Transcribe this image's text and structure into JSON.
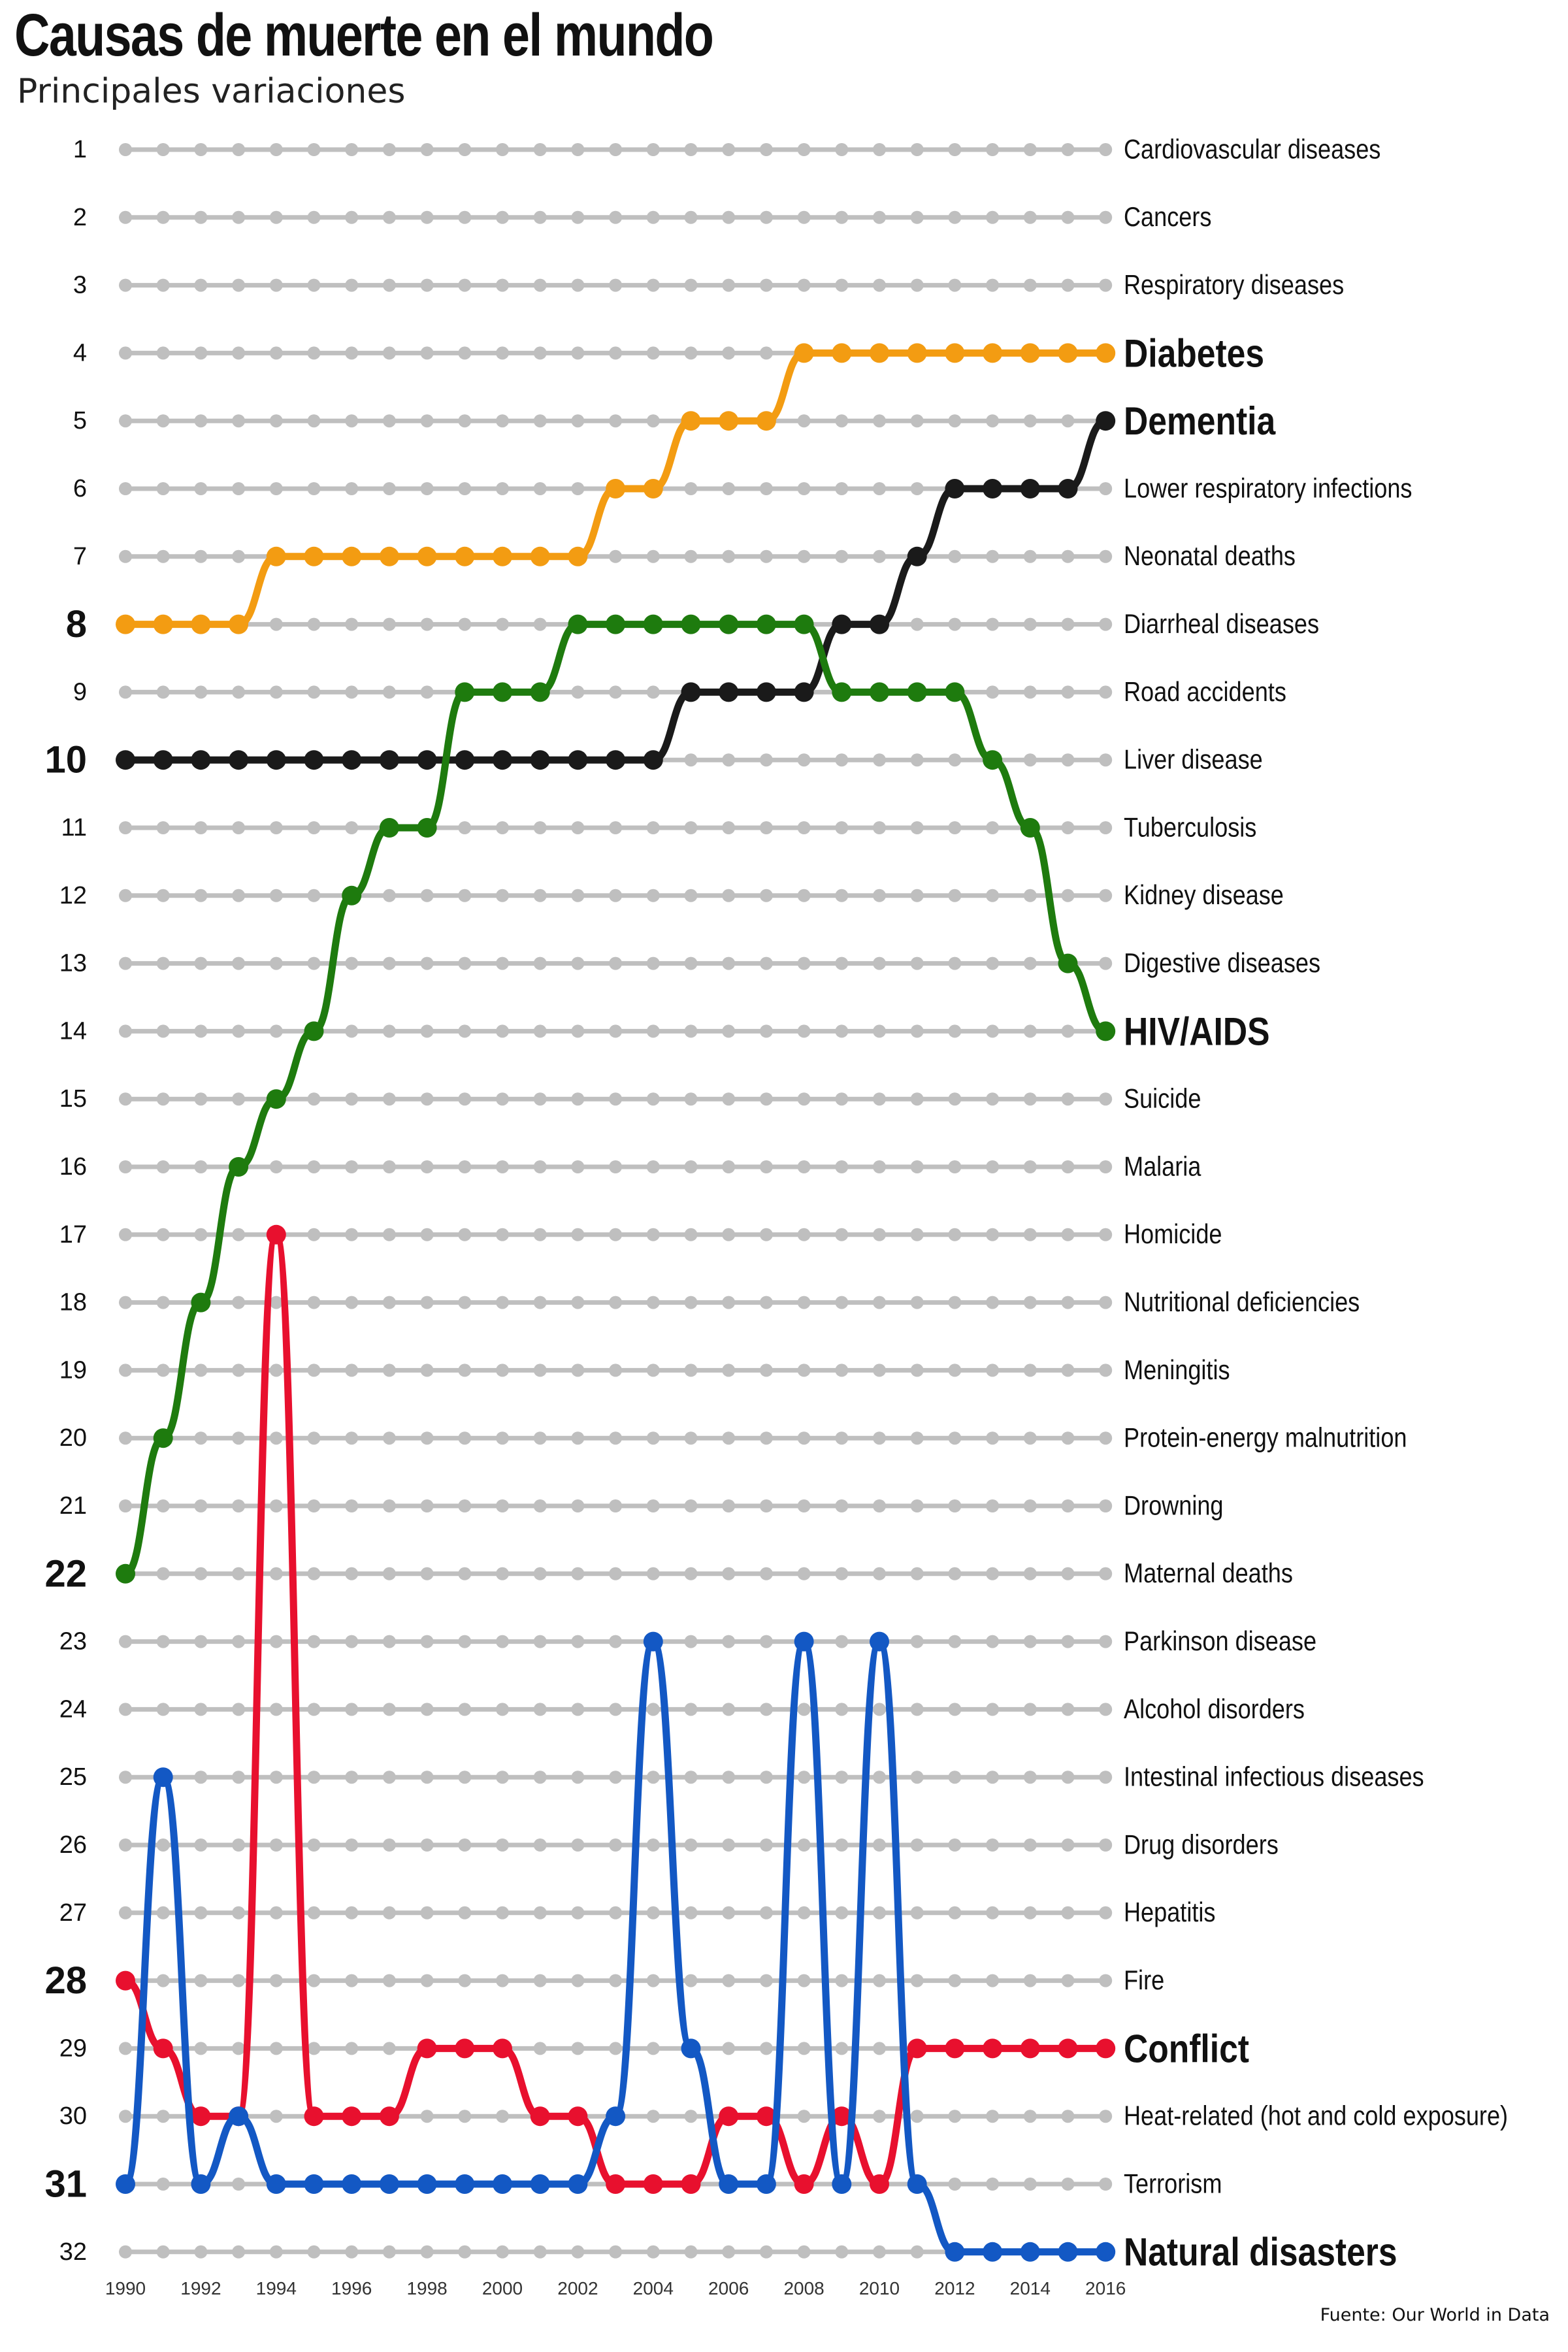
{
  "title": "Causas de muerte en el mundo",
  "subtitle": "Principales variaciones",
  "source": "Fuente: Our World in Data",
  "chart_data": {
    "type": "line",
    "chart_kind": "bump chart (rank over time)",
    "title": "Causas de muerte en el mundo",
    "subtitle": "Principales variaciones",
    "x": [
      1990,
      1991,
      1992,
      1993,
      1994,
      1995,
      1996,
      1997,
      1998,
      1999,
      2000,
      2001,
      2002,
      2003,
      2004,
      2005,
      2006,
      2007,
      2008,
      2009,
      2010,
      2011,
      2012,
      2013,
      2014,
      2015,
      2016
    ],
    "x_tick_labels": [
      "1990",
      "1992",
      "1994",
      "1996",
      "1998",
      "2000",
      "2002",
      "2004",
      "2006",
      "2008",
      "2010",
      "2012",
      "2014",
      "2016"
    ],
    "y_tick_labels": [
      "1",
      "2",
      "3",
      "4",
      "5",
      "6",
      "7",
      "8",
      "9",
      "10",
      "11",
      "12",
      "13",
      "14",
      "15",
      "16",
      "17",
      "18",
      "19",
      "20",
      "21",
      "22",
      "23",
      "24",
      "25",
      "26",
      "27",
      "28",
      "29",
      "30",
      "31",
      "32"
    ],
    "y_bold_ranks": [
      8,
      10,
      22,
      28,
      31
    ],
    "ylim": [
      1,
      32
    ],
    "y_reversed": true,
    "grid": false,
    "background_color": "#bfbfbf",
    "rank_labels_2016": [
      "Cardiovascular diseases",
      "Cancers",
      "Respiratory diseases",
      "Diabetes",
      "Dementia",
      "Lower respiratory infections",
      "Neonatal deaths",
      "Diarrheal diseases",
      "Road accidents",
      "Liver disease",
      "Tuberculosis",
      "Kidney disease",
      "Digestive diseases",
      "HIV/AIDS",
      "Suicide",
      "Malaria",
      "Homicide",
      "Nutritional deficiencies",
      "Meningitis",
      "Protein-energy malnutrition",
      "Drowning",
      "Maternal deaths",
      "Parkinson disease",
      "Alcohol disorders",
      "Intestinal infectious diseases",
      "Drug disorders",
      "Hepatitis",
      "Fire",
      "Conflict",
      "Heat-related (hot and cold exposure)",
      "Terrorism",
      "Natural disasters"
    ],
    "highlighted_labels": [
      "Diabetes",
      "Dementia",
      "HIV/AIDS",
      "Conflict",
      "Natural disasters"
    ],
    "series": [
      {
        "name": "Diabetes",
        "color": "#f39c12",
        "values": [
          8,
          8,
          8,
          8,
          7,
          7,
          7,
          7,
          7,
          7,
          7,
          7,
          7,
          6,
          6,
          5,
          5,
          5,
          4,
          4,
          4,
          4,
          4,
          4,
          4,
          4,
          4
        ]
      },
      {
        "name": "Dementia",
        "color": "#1a1a1a",
        "values": [
          10,
          10,
          10,
          10,
          10,
          10,
          10,
          10,
          10,
          10,
          10,
          10,
          10,
          10,
          10,
          9,
          9,
          9,
          9,
          8,
          8,
          7,
          6,
          6,
          6,
          6,
          5
        ]
      },
      {
        "name": "HIV/AIDS",
        "color": "#1e7b0e",
        "values": [
          22,
          20,
          18,
          16,
          15,
          14,
          12,
          11,
          11,
          9,
          9,
          9,
          8,
          8,
          8,
          8,
          8,
          8,
          8,
          9,
          9,
          9,
          9,
          10,
          11,
          13,
          14
        ]
      },
      {
        "name": "Conflict",
        "color": "#e8102e",
        "values": [
          28,
          29,
          30,
          30,
          17,
          30,
          30,
          30,
          29,
          29,
          29,
          30,
          30,
          31,
          31,
          31,
          30,
          30,
          31,
          30,
          31,
          29,
          29,
          29,
          29,
          29,
          29
        ]
      },
      {
        "name": "Natural disasters",
        "color": "#1358c4",
        "values": [
          31,
          25,
          31,
          30,
          31,
          31,
          31,
          31,
          31,
          31,
          31,
          31,
          31,
          30,
          23,
          29,
          31,
          31,
          23,
          31,
          23,
          31,
          32,
          32,
          32,
          32,
          32
        ]
      }
    ]
  }
}
